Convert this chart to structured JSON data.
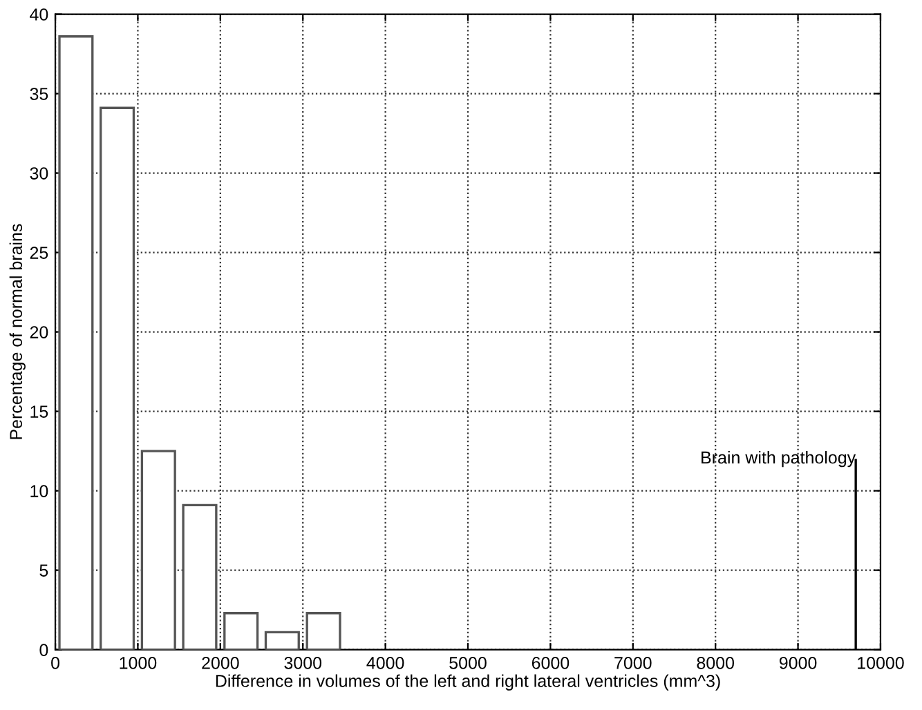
{
  "chart_data": {
    "type": "bar",
    "xlabel": "Difference in volumes of the left and right lateral ventricles (mm^3)",
    "ylabel": "Percentage of normal brains",
    "series": [
      {
        "x": [
          250,
          750,
          1250,
          1750,
          2250,
          2750,
          3250
        ],
        "values": [
          38.6,
          34.1,
          12.5,
          9.1,
          2.3,
          1.1,
          2.3
        ],
        "color": "#ffffff"
      },
      {
        "x": [
          9700
        ],
        "values": [
          12
        ],
        "color": "#000000"
      }
    ],
    "annotations": [
      {
        "text": "Brain with pathology",
        "x": 9700,
        "y": 12
      }
    ],
    "xlim": [
      0,
      10000
    ],
    "xticks": [
      0,
      1000,
      2000,
      3000,
      4000,
      5000,
      6000,
      7000,
      8000,
      9000,
      10000
    ],
    "ylim": [
      0,
      40
    ],
    "yticks": [
      0,
      5,
      10,
      15,
      20,
      25,
      30,
      35,
      40
    ],
    "grid": true
  }
}
